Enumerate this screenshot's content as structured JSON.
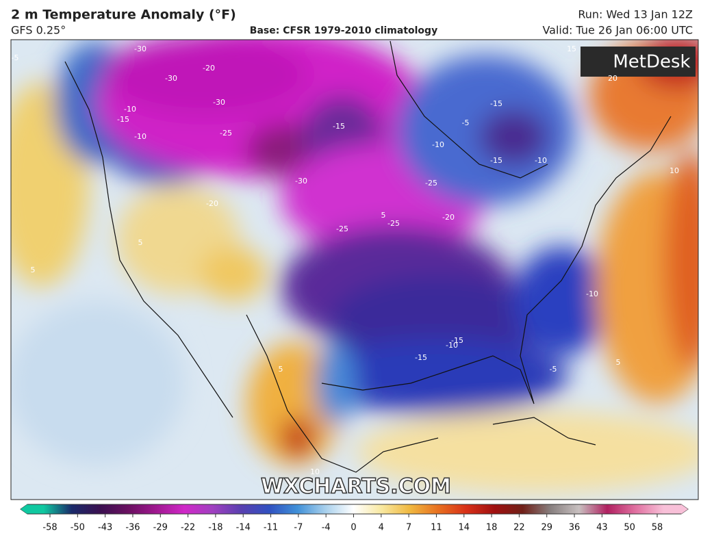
{
  "header": {
    "title": "2 m Temperature Anomaly (°F)",
    "model": "GFS 0.25°",
    "base": "Base: CFSR 1979-2010 climatology",
    "run": "Run: Wed 13 Jan 12Z",
    "valid": "Valid: Tue 26 Jan 06:00 UTC"
  },
  "logo": "MetDesk",
  "watermark": "WXCHARTS.COM",
  "contour_labels": [
    -5,
    -30,
    -20,
    -30,
    -30,
    -10,
    -15,
    -10,
    -25,
    -30,
    -15,
    -20,
    -25,
    -25,
    -20,
    -25,
    -10,
    -15,
    -10,
    -15,
    -5,
    -10,
    15,
    20,
    10,
    5,
    5,
    -10,
    -15,
    -15,
    -5,
    5,
    5,
    10,
    5
  ],
  "colorbar": {
    "ticks": [
      -58,
      -50,
      -43,
      -36,
      -29,
      -22,
      -18,
      -14,
      -11,
      -7,
      -4,
      0,
      4,
      7,
      11,
      14,
      18,
      22,
      29,
      36,
      43,
      50,
      58
    ],
    "colors": [
      "#10c8a0",
      "#1a2a6a",
      "#3a1050",
      "#6a1060",
      "#a01890",
      "#d028c8",
      "#a040c0",
      "#5a40b0",
      "#3050c0",
      "#4090d8",
      "#a8d0ec",
      "#ffffff",
      "#f8e8a0",
      "#f0b840",
      "#e87020",
      "#d83018",
      "#a01010",
      "#702018",
      "#888080",
      "#c8c0c0",
      "#b02060",
      "#e070a0",
      "#f8c0d8"
    ]
  }
}
